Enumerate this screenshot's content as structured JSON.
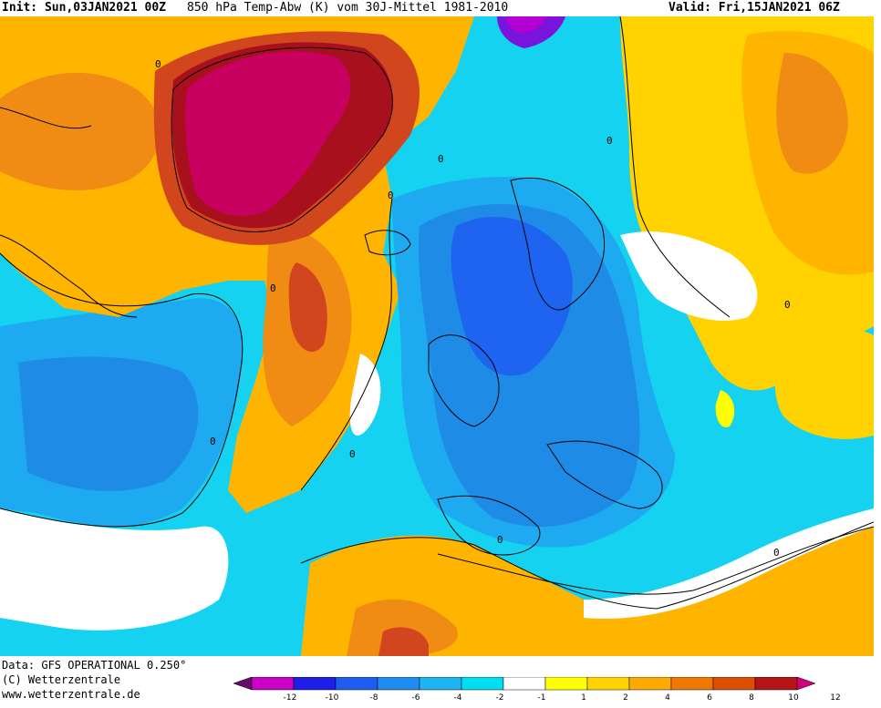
{
  "header": {
    "init": "Init: Sun,03JAN2021 00Z",
    "title": "850 hPa Temp-Abw (K) vom 30J-Mittel 1981-2010",
    "valid": "Valid: Fri,15JAN2021 06Z"
  },
  "footer": {
    "data_line": "Data: GFS OPERATIONAL 0.250°",
    "copyright": "(C) Wetterzentrale",
    "website": "www.wetterzentrale.de"
  },
  "colorbar": {
    "ticks": [
      "-12",
      "-10",
      "-8",
      "-6",
      "-4",
      "-2",
      "-1",
      "1",
      "2",
      "4",
      "6",
      "8",
      "10",
      "12"
    ],
    "colors": [
      "#6a0a6a",
      "#c800c8",
      "#1e1ee6",
      "#1f5cf0",
      "#1e8cf0",
      "#1eb4f0",
      "#00dcf0",
      "#ffffff",
      "#ffff00",
      "#ffd200",
      "#ffaa00",
      "#f07800",
      "#dc5000",
      "#b41414",
      "#d20078"
    ]
  },
  "map": {
    "contour_label": "0",
    "palette": {
      "deep_magenta": "#c8005f",
      "dark_red": "#a8101e",
      "red_orange": "#d2461e",
      "orange": "#f08c14",
      "amber": "#ffb400",
      "yellow_orange": "#ffd200",
      "yellow": "#ffff00",
      "white": "#ffffff",
      "cyan": "#14d2f0",
      "sky": "#1eaaf0",
      "azure": "#1e8ce6",
      "blue": "#1e64f0",
      "purple_blue": "#7814dc",
      "magenta_blue": "#b400d2"
    }
  }
}
